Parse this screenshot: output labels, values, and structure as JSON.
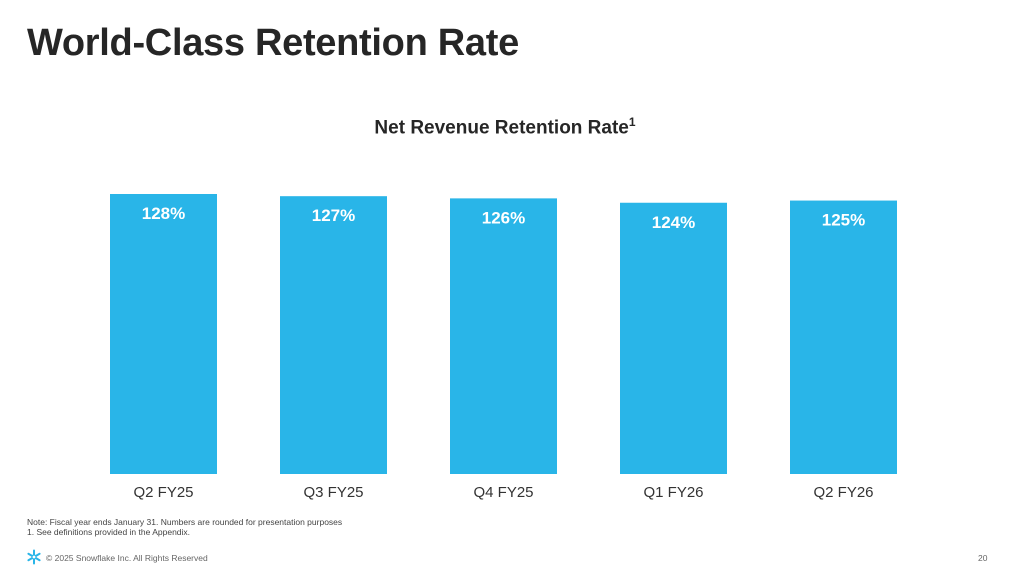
{
  "slide": {
    "title": "World-Class Retention Rate",
    "note": "Note: Fiscal year ends January 31. Numbers are rounded for presentation purposes",
    "footnote": "1.  See definitions provided in the Appendix.",
    "copyright": "© 2025 Snowflake Inc. All Rights Reserved",
    "page_number": "20",
    "logo_icon": "snowflake-logo-icon"
  },
  "chart_data": {
    "type": "bar",
    "title": "Net Revenue Retention Rate",
    "title_superscript": "1",
    "categories": [
      "Q2 FY25",
      "Q3 FY25",
      "Q4 FY25",
      "Q1 FY26",
      "Q2 FY26"
    ],
    "values": [
      128,
      127,
      126,
      124,
      125
    ],
    "value_labels": [
      "128%",
      "127%",
      "126%",
      "124%",
      "125%"
    ],
    "unit": "%",
    "ylim": [
      0,
      130
    ],
    "grid": false,
    "legend": "none",
    "bar_color": "#29b5e8",
    "label_color": "#ffffff"
  }
}
